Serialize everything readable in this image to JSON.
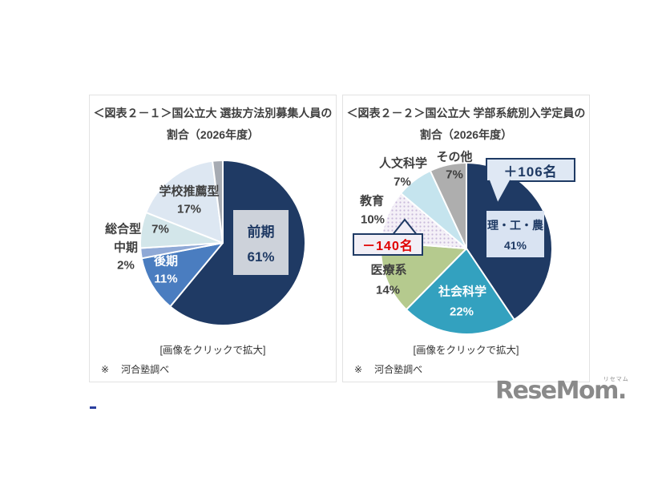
{
  "accent": {
    "navy": "#1f3a64",
    "label_gray": "#3f3f3f",
    "red": "#e00000",
    "card_border": "#e2e2e2",
    "logo_gray": "#8a8a8a",
    "link_blue": "#2b3f9e",
    "white_separator": "#ffffff"
  },
  "cards": [
    {
      "title_line1": "＜図表２－１＞国公立大 選抜方法別募集人員の",
      "title_line2": "割合（2026年度）",
      "caption": "[画像をクリックで拡大]",
      "note_mark": "※",
      "note_text": "河合塾調べ",
      "center_box": {
        "line1": "前期",
        "line2": "61%",
        "bg": "#cdd2da",
        "text_color": "#1f3a64"
      }
    },
    {
      "title_line1": "＜図表２－２＞国公立大 学部系統別入学定員の",
      "title_line2": "割合（2026年度）",
      "caption": "[画像をクリックで拡大]",
      "note_mark": "※",
      "note_text": "河合塾調べ",
      "center_box": {
        "line1": "理・工・農",
        "line2": "41%",
        "bg": "#d9e3f2",
        "text_color": "#1f3a64"
      },
      "callout_plus": {
        "text": "＋106名",
        "bg": "#dfe8f4",
        "border": "#1f3a64",
        "text_color": "#1f3a64"
      },
      "callout_minus": {
        "text": "－140名",
        "bg": "#f2eff6",
        "border": "#1f3a64",
        "text_color": "#e00000"
      }
    }
  ],
  "chart_data": [
    {
      "type": "pie",
      "title": "＜図表２－１＞国公立大 選抜方法別募集人員の割合（2026年度）",
      "start_angle": "top",
      "direction": "clockwise",
      "legend": "none",
      "source_note": "河合塾調べ",
      "slices": [
        {
          "label": "前期",
          "value": 61,
          "pct_label": "61%",
          "color": "#1f3a64"
        },
        {
          "label": "後期",
          "value": 11,
          "pct_label": "11%",
          "color": "#4a7dc0"
        },
        {
          "label": "中期",
          "value": 2,
          "pct_label": "2%",
          "color": "#8fa9d6"
        },
        {
          "label": "総合型",
          "value": 7,
          "pct_label": "7%",
          "color": "#d3e6ea"
        },
        {
          "label": "学校推薦型",
          "value": 17,
          "pct_label": "17%",
          "color": "#dde7f2"
        },
        {
          "label": "",
          "value": 2,
          "pct_label": "",
          "color": "#a6abb3"
        }
      ]
    },
    {
      "type": "pie",
      "title": "＜図表２－２＞国公立大 学部系統別入学定員の割合（2026年度）",
      "start_angle": "top",
      "direction": "clockwise",
      "legend": "none",
      "source_note": "河合塾調べ",
      "annotations": [
        {
          "text": "＋106名",
          "target": "理・工・農"
        },
        {
          "text": "－140名",
          "target": "教育"
        }
      ],
      "slices": [
        {
          "label": "理・工・農",
          "value": 41,
          "pct_label": "41%",
          "color": "#1f3a64"
        },
        {
          "label": "社会科学",
          "value": 22,
          "pct_label": "22%",
          "color": "#33a1bf"
        },
        {
          "label": "医療系",
          "value": 14,
          "pct_label": "14%",
          "color": "#b5ca8e"
        },
        {
          "label": "教育",
          "value": 10,
          "pct_label": "10%",
          "color": "#f4f0f7",
          "pattern": "dots",
          "pattern_dot_color": "#c9badb"
        },
        {
          "label": "人文科学",
          "value": 7,
          "pct_label": "7%",
          "color": "#c5e4ee"
        },
        {
          "label": "その他",
          "value": 7,
          "pct_label": "7%",
          "color": "#aeaeae"
        }
      ]
    }
  ],
  "logo": {
    "text": "ReseMom",
    "suffix": ".",
    "ruby": "リセマム"
  }
}
